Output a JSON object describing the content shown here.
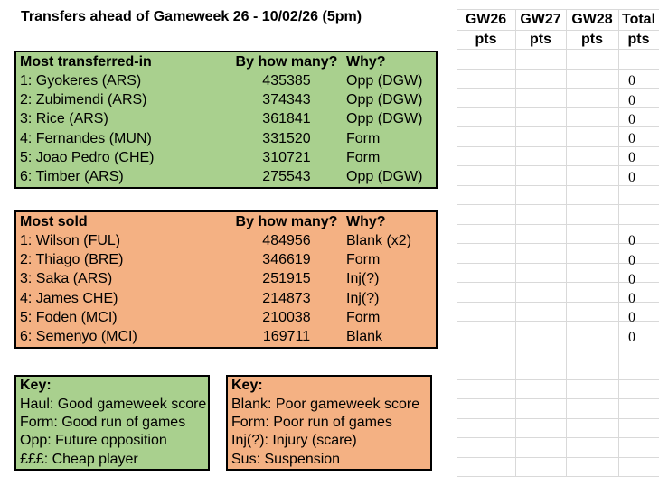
{
  "title": "Transfers ahead of Gameweek 26 - 10/02/26 (5pm)",
  "colors": {
    "green": "#A9D08E",
    "orange": "#F4B183",
    "grid": "#D9D9D9"
  },
  "points_grid": {
    "columns": [
      {
        "label": "GW26",
        "sub": "pts"
      },
      {
        "label": "GW27",
        "sub": "pts"
      },
      {
        "label": "GW28",
        "sub": "pts"
      },
      {
        "label": "Total",
        "sub": "pts"
      }
    ],
    "green_totals": [
      "0",
      "0",
      "0",
      "0",
      "0",
      "0"
    ],
    "orange_totals": [
      "0",
      "0",
      "0",
      "0",
      "0",
      "0"
    ]
  },
  "transfers_in": {
    "color": "green",
    "title": "Most transferred-in",
    "col2": "By how many?",
    "col3": "Why?",
    "rows": [
      {
        "player": "1: Gyokeres (ARS)",
        "count": "435385",
        "why": "Opp (DGW)"
      },
      {
        "player": "2: Zubimendi (ARS)",
        "count": "374343",
        "why": "Opp (DGW)"
      },
      {
        "player": "3: Rice (ARS)",
        "count": "361841",
        "why": "Opp (DGW)"
      },
      {
        "player": "4: Fernandes (MUN)",
        "count": "331520",
        "why": "Form"
      },
      {
        "player": "5: Joao Pedro (CHE)",
        "count": "310721",
        "why": "Form"
      },
      {
        "player": "6: Timber (ARS)",
        "count": "275543",
        "why": "Opp (DGW)"
      }
    ]
  },
  "transfers_out": {
    "color": "orange",
    "title": "Most sold",
    "col2": "By how many?",
    "col3": "Why?",
    "rows": [
      {
        "player": "1: Wilson (FUL)",
        "count": "484956",
        "why": "Blank (x2)"
      },
      {
        "player": "2: Thiago (BRE)",
        "count": "346619",
        "why": "Form"
      },
      {
        "player": "3: Saka (ARS)",
        "count": "251915",
        "why": "Inj(?)"
      },
      {
        "player": "4: James CHE)",
        "count": "214873",
        "why": "Inj(?)"
      },
      {
        "player": "5: Foden (MCI)",
        "count": "210038",
        "why": "Form"
      },
      {
        "player": "6: Semenyo (MCI)",
        "count": "169711",
        "why": "Blank"
      }
    ]
  },
  "key_green": {
    "color": "green",
    "title": "Key:",
    "lines": [
      "Haul: Good gameweek score",
      "Form: Good run of games",
      "Opp: Future opposition",
      "£££: Cheap player"
    ]
  },
  "key_orange": {
    "color": "orange",
    "title": "Key:",
    "lines": [
      "Blank: Poor gameweek score",
      "Form: Poor run of games",
      "Inj(?): Injury (scare)",
      "Sus: Suspension"
    ]
  }
}
